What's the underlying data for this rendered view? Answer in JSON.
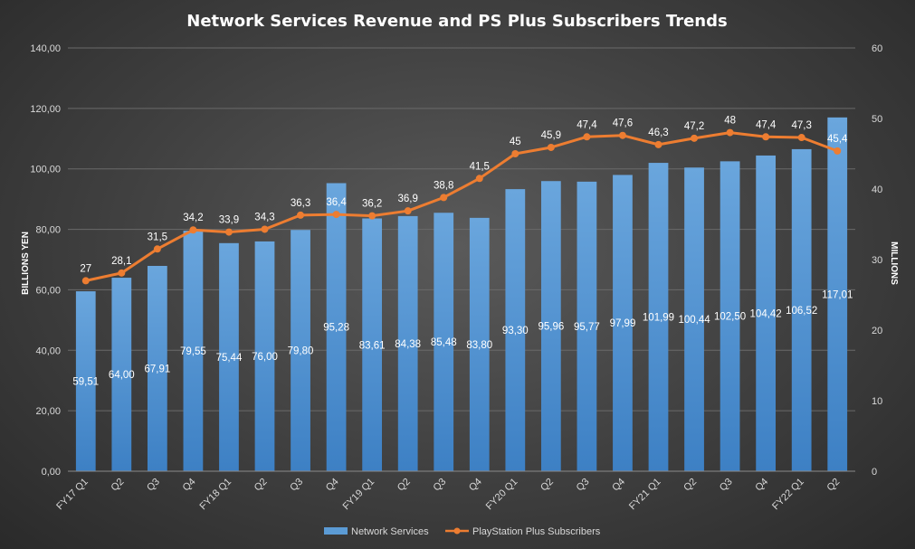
{
  "chart_data": {
    "type": "bar",
    "title": "Network Services Revenue and PS Plus Subscribers Trends",
    "categories": [
      "FY17 Q1",
      "Q2",
      "Q3",
      "Q4",
      "FY18 Q1",
      "Q2",
      "Q3",
      "Q4",
      "FY19 Q1",
      "Q2",
      "Q3",
      "Q4",
      "FY20 Q1",
      "Q2",
      "Q3",
      "Q4",
      "FY21 Q1",
      "Q2",
      "Q3",
      "Q4",
      "FY22 Q1",
      "Q2"
    ],
    "ylabel": "BILLIONS YEN",
    "y2label": "MILLIONS",
    "ylim": [
      0,
      140
    ],
    "y2lim": [
      0,
      60
    ],
    "yticks": [
      "0,00",
      "20,00",
      "40,00",
      "60,00",
      "80,00",
      "100,00",
      "120,00",
      "140,00"
    ],
    "y2ticks": [
      "0",
      "10",
      "20",
      "30",
      "40",
      "50",
      "60"
    ],
    "grid": true,
    "legend_position": "bottom",
    "series": [
      {
        "name": "Network Services",
        "type": "bar",
        "axis": "left",
        "color": "#5b9bd5",
        "values": [
          59.51,
          64.0,
          67.91,
          79.55,
          75.44,
          76.0,
          79.8,
          95.28,
          83.61,
          84.38,
          85.48,
          83.8,
          93.3,
          95.96,
          95.77,
          97.99,
          101.99,
          100.44,
          102.5,
          104.42,
          106.52,
          117.01
        ],
        "labels": [
          "59,51",
          "64,00",
          "67,91",
          "79,55",
          "75,44",
          "76,00",
          "79,80",
          "95,28",
          "83,61",
          "84,38",
          "85,48",
          "83,80",
          "93,30",
          "95,96",
          "95,77",
          "97,99",
          "101,99",
          "100,44",
          "102,50",
          "104,42",
          "106,52",
          "117,01"
        ]
      },
      {
        "name": "PlayStation Plus Subscribers",
        "type": "line",
        "axis": "right",
        "color": "#ed7d31",
        "values": [
          27,
          28.1,
          31.5,
          34.2,
          33.9,
          34.3,
          36.3,
          36.4,
          36.2,
          36.9,
          38.8,
          41.5,
          45,
          45.9,
          47.4,
          47.6,
          46.3,
          47.2,
          48,
          47.4,
          47.3,
          45.4
        ],
        "labels": [
          "27",
          "28,1",
          "31,5",
          "34,2",
          "33,9",
          "34,3",
          "36,3",
          "36,4",
          "36,2",
          "36,9",
          "38,8",
          "41,5",
          "45",
          "45,9",
          "47,4",
          "47,6",
          "46,3",
          "47,2",
          "48",
          "47,4",
          "47,3",
          "45,4"
        ]
      }
    ]
  }
}
